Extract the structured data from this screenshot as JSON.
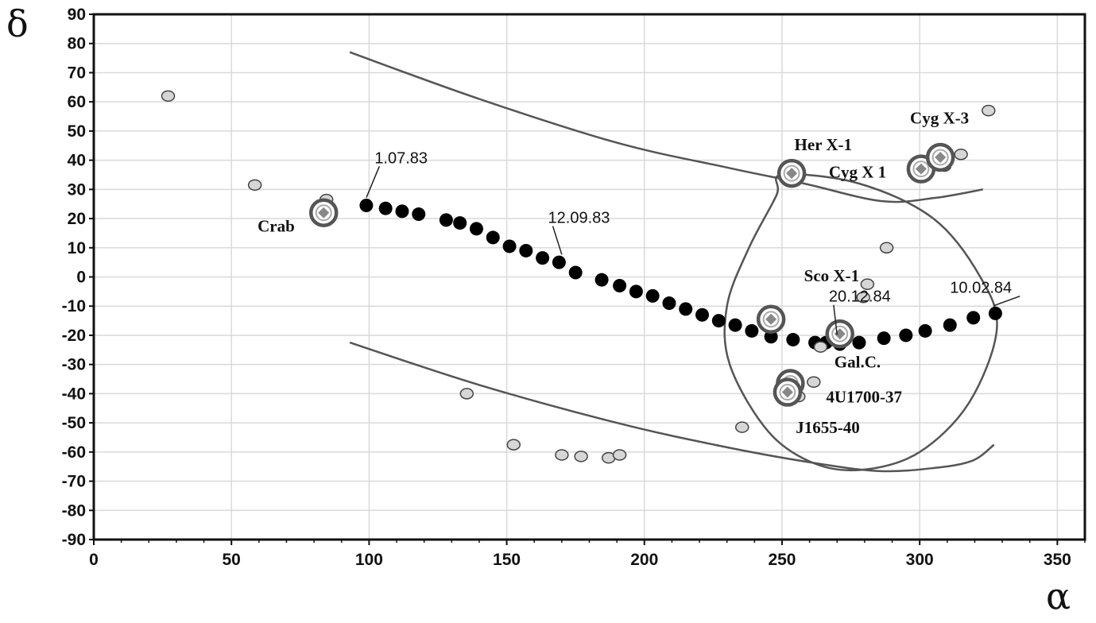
{
  "chart_data": {
    "type": "scatter",
    "title": "",
    "xlabel": "α",
    "ylabel": "δ",
    "xlim": [
      0,
      360
    ],
    "ylim": [
      -90,
      90
    ],
    "x_ticks": [
      0,
      50,
      100,
      150,
      200,
      250,
      300,
      350
    ],
    "y_ticks": [
      90,
      80,
      70,
      60,
      50,
      40,
      30,
      20,
      10,
      0,
      -10,
      -20,
      -30,
      -40,
      -50,
      -60,
      -70,
      -80,
      -90
    ],
    "grid": true,
    "series": [
      {
        "role": "track",
        "points": [
          [
            99,
            24.5
          ],
          [
            106,
            23.5
          ],
          [
            112,
            22.5
          ],
          [
            118,
            21.5
          ],
          [
            128,
            19.5
          ],
          [
            133,
            18.5
          ],
          [
            139,
            16.5
          ],
          [
            145,
            13.5
          ],
          [
            151,
            10.5
          ],
          [
            157,
            9
          ],
          [
            163,
            6.5
          ],
          [
            169,
            5
          ],
          [
            175,
            1.5
          ],
          [
            184.5,
            -1
          ],
          [
            191,
            -3
          ],
          [
            197,
            -5
          ],
          [
            203,
            -6.5
          ],
          [
            209,
            -9
          ],
          [
            215,
            -11
          ],
          [
            221,
            -13
          ],
          [
            227,
            -15
          ],
          [
            233,
            -16.5
          ],
          [
            239,
            -18.5
          ],
          [
            246,
            -20.5
          ],
          [
            254,
            -21.5
          ],
          [
            262,
            -22.5
          ],
          [
            266,
            -22.5
          ],
          [
            271,
            -23
          ],
          [
            278,
            -22.5
          ],
          [
            287,
            -21
          ],
          [
            295,
            -20
          ],
          [
            302,
            -18.5
          ],
          [
            311,
            -16.5
          ],
          [
            319.5,
            -14
          ],
          [
            327.5,
            -12.5
          ]
        ]
      },
      {
        "role": "field-sources",
        "points": [
          [
            27,
            62
          ],
          [
            58.5,
            31.5
          ],
          [
            84.5,
            26.5
          ],
          [
            135.5,
            -40
          ],
          [
            152.5,
            -57.5
          ],
          [
            170,
            -61
          ],
          [
            177,
            -61.5
          ],
          [
            187,
            -62
          ],
          [
            191,
            -61
          ],
          [
            235.5,
            -51.5
          ],
          [
            261.5,
            -36
          ],
          [
            264,
            -24
          ],
          [
            256,
            -41
          ],
          [
            279.5,
            -7
          ],
          [
            281,
            -2.5
          ],
          [
            288,
            10
          ],
          [
            309,
            38
          ],
          [
            315,
            42
          ],
          [
            325,
            57
          ]
        ]
      },
      {
        "role": "catalogued-sources",
        "points": [
          {
            "name": "Crab",
            "x": 83.5,
            "y": 22
          },
          {
            "name": "Her X-1",
            "x": 253.5,
            "y": 35.5
          },
          {
            "name": "Cyg X 1",
            "x": 300.5,
            "y": 37
          },
          {
            "name": "Cyg X-3",
            "x": 307.5,
            "y": 41
          },
          {
            "name": "Sco X-1",
            "x": 246,
            "y": -14.5
          },
          {
            "name": "Gal.C.",
            "x": 271,
            "y": -19.5
          },
          {
            "name": "4U1700-37",
            "x": 253,
            "y": -36.5
          },
          {
            "name": "J1655-40",
            "x": 252,
            "y": -39.5
          }
        ]
      }
    ],
    "boundary_curves": [
      {
        "name": "upper",
        "points": [
          [
            93,
            77
          ],
          [
            140,
            61
          ],
          [
            190,
            46
          ],
          [
            230,
            37.5
          ],
          [
            258,
            32
          ],
          [
            286,
            26
          ],
          [
            305,
            27
          ],
          [
            323,
            30
          ]
        ]
      },
      {
        "name": "lower",
        "points": [
          [
            93,
            -22.5
          ],
          [
            140,
            -37
          ],
          [
            190,
            -50
          ],
          [
            228,
            -58
          ],
          [
            260,
            -63.5
          ],
          [
            285,
            -66.5
          ],
          [
            305,
            -65.5
          ],
          [
            319,
            -63
          ],
          [
            327,
            -57.5
          ]
        ]
      },
      {
        "name": "ellipse",
        "points": [
          [
            250,
            35
          ],
          [
            278,
            32
          ],
          [
            305,
            20
          ],
          [
            322,
            0
          ],
          [
            328,
            -18
          ],
          [
            318,
            -43
          ],
          [
            300,
            -60
          ],
          [
            280,
            -66
          ],
          [
            262,
            -64
          ],
          [
            245,
            -53
          ],
          [
            231,
            -30
          ],
          [
            230,
            -10
          ],
          [
            238,
            10
          ],
          [
            248,
            28
          ],
          [
            250,
            35
          ]
        ]
      }
    ],
    "annotations": [
      {
        "text": "1.07.83",
        "x": 102,
        "y": 39,
        "target": [
          99,
          25
        ]
      },
      {
        "text": "12.09.83",
        "x": 165,
        "y": 18.5,
        "target": [
          170,
          5.5
        ]
      },
      {
        "text": "20.12.84",
        "x": 267,
        "y": -8.5,
        "target": [
          270,
          -22
        ]
      },
      {
        "text": "10.02.84",
        "x": 311,
        "y": -5.5,
        "target": [
          327,
          -12
        ]
      }
    ],
    "source_labels": [
      {
        "text": "Crab",
        "x": 59.5,
        "y": 15.5
      },
      {
        "text": "Her X-1",
        "x": 254.5,
        "y": 43.5
      },
      {
        "text": "Cyg X 1",
        "x": 267,
        "y": 34
      },
      {
        "text": "Cyg X-3",
        "x": 296.5,
        "y": 52.5
      },
      {
        "text": "Sco X-1",
        "x": 258,
        "y": -1.5
      },
      {
        "text": "Gal.C.",
        "x": 269,
        "y": -31
      },
      {
        "text": "4U1700-37",
        "x": 266,
        "y": -43
      },
      {
        "text": "J1655-40",
        "x": 255,
        "y": -53.5
      }
    ]
  }
}
